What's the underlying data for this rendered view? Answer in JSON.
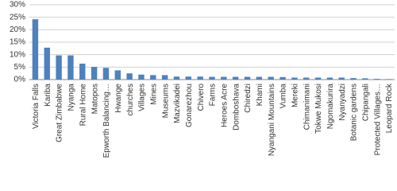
{
  "chart_data": {
    "type": "bar",
    "categories": [
      "Victoria Falls",
      "Kariba",
      "Great Zimbabwe",
      "Nyanga",
      "Rural Home",
      "Matopos",
      "Epworth Balancing…",
      "Hwange",
      "churches",
      "Villages",
      "Mines",
      "Museums",
      "Mazvikadei",
      "Gonarezhou",
      "Chivero",
      "Farms",
      "Heroes Acre",
      "Domboshava",
      "Chiredzi",
      "Khami",
      "Nyangani Mountains",
      "Vumba",
      "Mereki",
      "Chimanimani",
      "Tokwe Mukosi",
      "Ngomakurira",
      "Nyanyadzi",
      "Botanic gardens",
      "Chipangali",
      "Protected Villages…",
      "Leopard Rock"
    ],
    "values": [
      24.2,
      12.8,
      9.7,
      9.7,
      6.4,
      5.1,
      4.7,
      3.7,
      2.5,
      2.0,
      1.8,
      1.8,
      1.2,
      1.2,
      1.2,
      1.1,
      1.1,
      1.1,
      1.1,
      1.1,
      1.1,
      1.0,
      0.8,
      0.8,
      0.8,
      0.8,
      0.8,
      0.6,
      0.5,
      0.3,
      0.2
    ],
    "color": "#4f81bd",
    "ylim": [
      0,
      30
    ],
    "yticks": [
      {
        "value": 0,
        "label": "0%"
      },
      {
        "value": 5,
        "label": "5%"
      },
      {
        "value": 10,
        "label": "10%"
      },
      {
        "value": 15,
        "label": "15%"
      },
      {
        "value": 20,
        "label": "20%"
      },
      {
        "value": 25,
        "label": "25%"
      },
      {
        "value": 30,
        "label": "30%"
      }
    ],
    "grid": true
  }
}
